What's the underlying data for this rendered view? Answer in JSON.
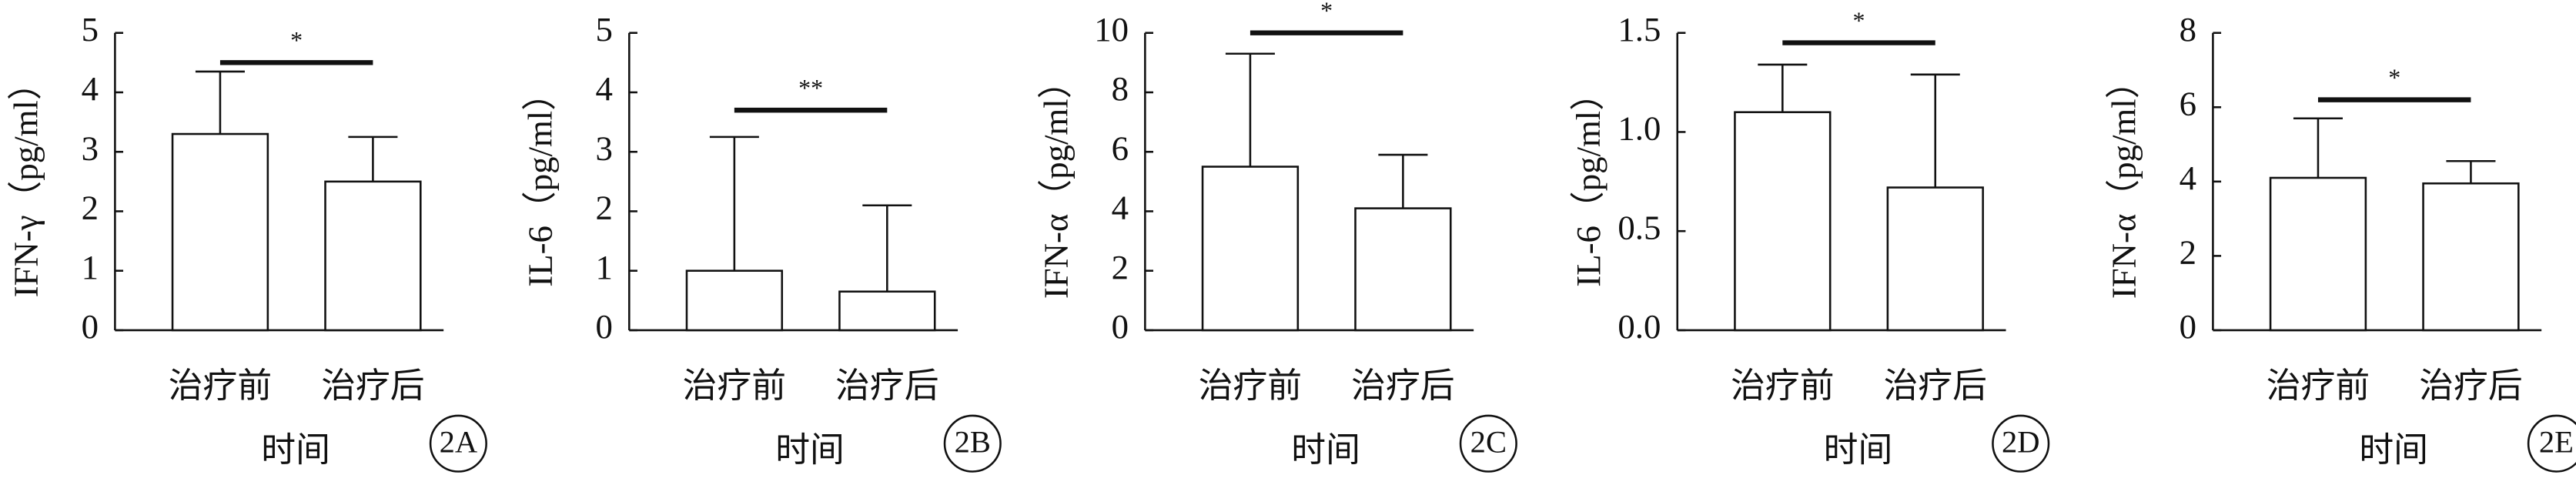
{
  "chart_data": [
    {
      "type": "bar",
      "panel_label": "2A",
      "y_label": "IFN-γ（pg/ml）",
      "x_label": "时间",
      "categories": [
        "治疗前",
        "治疗后"
      ],
      "values": [
        3.3,
        2.5
      ],
      "errors": [
        1.05,
        0.75
      ],
      "ylim": [
        0,
        5
      ],
      "yticks": [
        0,
        1,
        2,
        3,
        4,
        5
      ],
      "significance": {
        "y": 4.5,
        "label": "*"
      }
    },
    {
      "type": "bar",
      "panel_label": "2B",
      "y_label": "IL-6（pg/ml）",
      "x_label": "时间",
      "categories": [
        "治疗前",
        "治疗后"
      ],
      "values": [
        1.0,
        0.65
      ],
      "errors": [
        2.25,
        1.45
      ],
      "ylim": [
        0,
        5
      ],
      "yticks": [
        0,
        1,
        2,
        3,
        4,
        5
      ],
      "significance": {
        "y": 3.7,
        "label": "**"
      }
    },
    {
      "type": "bar",
      "panel_label": "2C",
      "y_label": "IFN-α（pg/ml）",
      "x_label": "时间",
      "categories": [
        "治疗前",
        "治疗后"
      ],
      "values": [
        5.5,
        4.1
      ],
      "errors": [
        3.8,
        1.8
      ],
      "ylim": [
        0,
        10
      ],
      "yticks": [
        0,
        2,
        4,
        6,
        8,
        10
      ],
      "significance": {
        "y": 10,
        "label": "*"
      }
    },
    {
      "type": "bar",
      "panel_label": "2D",
      "y_label": "IL-6（pg/ml）",
      "x_label": "时间",
      "categories": [
        "治疗前",
        "治疗后"
      ],
      "values": [
        1.1,
        0.72
      ],
      "errors": [
        0.24,
        0.57
      ],
      "ylim": [
        0,
        1.5
      ],
      "yticks": [
        {
          "value": 0,
          "label": "0.0"
        },
        0.5,
        {
          "value": 1,
          "label": "1.0"
        },
        1.5
      ],
      "significance": {
        "y": 1.45,
        "label": "*"
      }
    },
    {
      "type": "bar",
      "panel_label": "2E",
      "y_label": "IFN-α（pg/ml）",
      "x_label": "时间",
      "categories": [
        "治疗前",
        "治疗后"
      ],
      "values": [
        4.1,
        3.95
      ],
      "errors": [
        1.6,
        0.6
      ],
      "ylim": [
        0,
        8
      ],
      "yticks": [
        0,
        2,
        4,
        6,
        8
      ],
      "significance": {
        "y": 6.2,
        "label": "*"
      }
    }
  ]
}
